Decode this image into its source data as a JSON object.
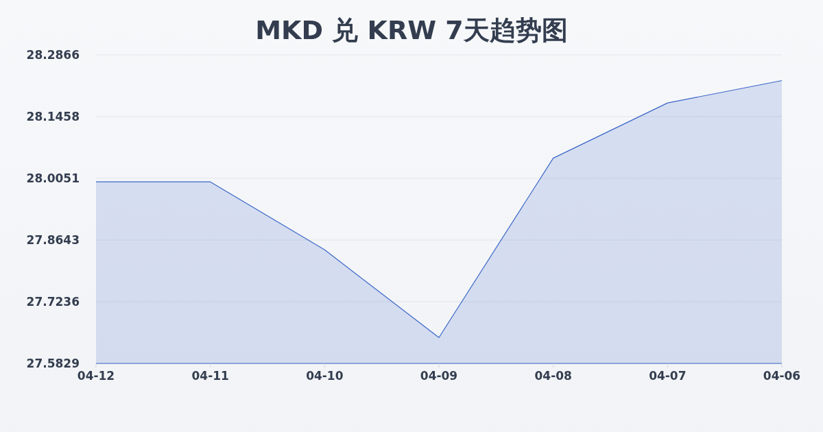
{
  "chart_data": {
    "type": "area",
    "title": "MKD 兑 KRW 7天趋势图",
    "categories": [
      "04-12",
      "04-11",
      "04-10",
      "04-09",
      "04-08",
      "04-07",
      "04-06"
    ],
    "series": [
      {
        "color": "#3a66c8",
        "values": [
          27.997,
          27.997,
          27.842,
          27.642,
          28.051,
          28.177,
          28.228
        ]
      }
    ],
    "ylim": [
      27.5829,
      28.2866
    ],
    "yticks": [
      27.5829,
      27.7236,
      27.8643,
      28.0051,
      28.1458,
      28.2866
    ],
    "grid": "y"
  }
}
